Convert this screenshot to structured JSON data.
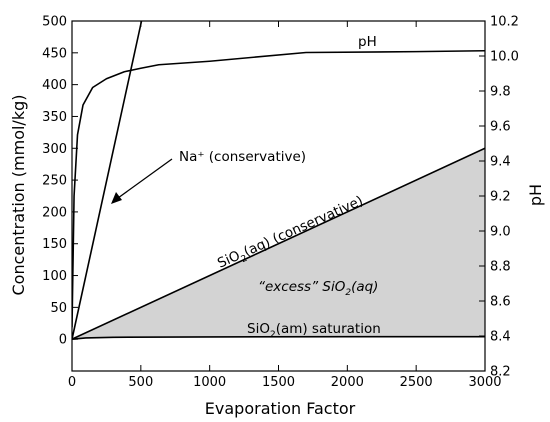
{
  "chart_data": {
    "type": "line",
    "xlabel": "Evaporation Factor",
    "ylabel_left": "Concentration (mmol/kg)",
    "ylabel_right": "pH",
    "xlim": [
      0,
      3000
    ],
    "ylim_left": [
      -50,
      500
    ],
    "ylim_right": [
      8.2,
      10.2
    ],
    "x_ticks": [
      0,
      500,
      1000,
      1500,
      2000,
      2500,
      3000
    ],
    "y_left_ticks": [
      0,
      50,
      100,
      150,
      200,
      250,
      300,
      350,
      400,
      450,
      500
    ],
    "y_right_ticks": [
      "8.2",
      "8.4",
      "8.6",
      "8.8",
      "9.0",
      "9.2",
      "9.4",
      "9.6",
      "9.8",
      "10.0",
      "10.2"
    ],
    "grid": false,
    "series": [
      {
        "name": "Na⁺ (conservative)",
        "axis": "left",
        "x": [
          0,
          505
        ],
        "y": [
          0,
          500
        ]
      },
      {
        "name": "SiO2(aq) (conservative)",
        "axis": "left",
        "x": [
          0,
          3000
        ],
        "y": [
          0,
          300
        ]
      },
      {
        "name": "SiO2(am) saturation",
        "axis": "left",
        "x": [
          0,
          100,
          300,
          1000,
          2000,
          3000
        ],
        "y": [
          0,
          2,
          3,
          3.5,
          4,
          4
        ]
      },
      {
        "name": "pH",
        "axis": "right",
        "x": [
          0,
          15,
          40,
          80,
          150,
          250,
          380,
          500,
          630,
          1000,
          1700,
          2500,
          3000
        ],
        "y": [
          8.45,
          9.2,
          9.55,
          9.72,
          9.82,
          9.87,
          9.91,
          9.93,
          9.95,
          9.97,
          10.02,
          10.025,
          10.03
        ]
      }
    ],
    "annotations": {
      "ph_label": "pH",
      "na_label": "Na⁺ (conservative)",
      "sio2aq_prefix": "SiO",
      "sio2aq_sub": "2",
      "sio2aq_suffix": "(aq) (conservative)",
      "excess_prefix": "“excess” SiO",
      "excess_sub": "2",
      "excess_suffix": "(aq)",
      "sat_prefix": "SiO",
      "sat_sub": "2",
      "sat_suffix": "(am) saturation"
    },
    "shaded_region": "excess SiO2(aq) between conservative and saturation curves",
    "colors": {
      "fill": "#d3d3d3",
      "line": "#000000"
    }
  }
}
